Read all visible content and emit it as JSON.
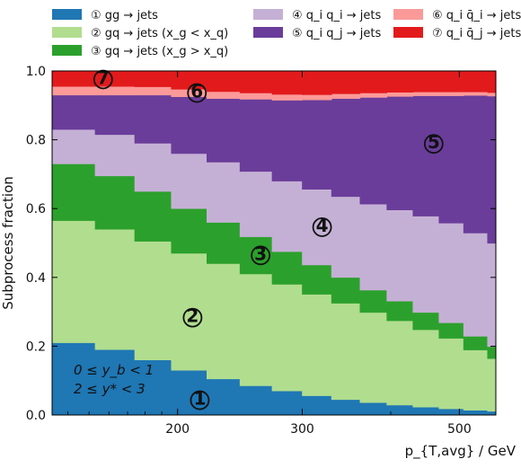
{
  "chart_data": {
    "type": "area",
    "subtype": "stacked-step",
    "title": "",
    "xlabel": "p_{T,avg} / GeV",
    "ylabel": "Subprocess fraction",
    "xscale": "log",
    "xlim": [
      133,
      563
    ],
    "ylim": [
      0.0,
      1.0
    ],
    "x_ticks": [
      200,
      300,
      500
    ],
    "x_tick_labels": [
      "200",
      "300",
      "500"
    ],
    "y_ticks": [
      0.0,
      0.2,
      0.4,
      0.6,
      0.8,
      1.0
    ],
    "y_tick_labels": [
      "0.0",
      "0.2",
      "0.4",
      "0.6",
      "0.8",
      "1.0"
    ],
    "grid": false,
    "legend_position": "top",
    "bin_edges": [
      133,
      153,
      174,
      196,
      220,
      245,
      272,
      300,
      330,
      362,
      395,
      430,
      468,
      507,
      548,
      563
    ],
    "series": [
      {
        "name": "gg → jets",
        "marker": "①",
        "color": "#1f77b4",
        "values": [
          0.21,
          0.19,
          0.16,
          0.13,
          0.105,
          0.085,
          0.07,
          0.056,
          0.045,
          0.036,
          0.029,
          0.023,
          0.018,
          0.014,
          0.011
        ]
      },
      {
        "name": "gq → jets (x_g < x_q)",
        "marker": "②",
        "color": "#b1dd8f",
        "values": [
          0.355,
          0.35,
          0.345,
          0.34,
          0.335,
          0.325,
          0.31,
          0.295,
          0.28,
          0.262,
          0.245,
          0.225,
          0.205,
          0.175,
          0.153
        ]
      },
      {
        "name": "gq → jets (x_g > x_q)",
        "marker": "③",
        "color": "#2ca02c",
        "values": [
          0.165,
          0.155,
          0.145,
          0.13,
          0.12,
          0.108,
          0.095,
          0.085,
          0.075,
          0.065,
          0.057,
          0.05,
          0.045,
          0.04,
          0.035
        ]
      },
      {
        "name": "q_i q_i → jets",
        "marker": "④",
        "color": "#c5b0d5",
        "values": [
          0.1,
          0.12,
          0.14,
          0.16,
          0.175,
          0.19,
          0.205,
          0.22,
          0.235,
          0.25,
          0.265,
          0.28,
          0.29,
          0.3,
          0.3
        ]
      },
      {
        "name": "q_i q_j → jets",
        "marker": "⑤",
        "color": "#6a3d9a",
        "values": [
          0.1,
          0.115,
          0.14,
          0.165,
          0.185,
          0.21,
          0.235,
          0.26,
          0.285,
          0.31,
          0.33,
          0.35,
          0.37,
          0.4,
          0.428
        ]
      },
      {
        "name": "q_i q̄_i → jets",
        "marker": "⑥",
        "color": "#fb9a99",
        "values": [
          0.025,
          0.025,
          0.024,
          0.022,
          0.02,
          0.018,
          0.017,
          0.015,
          0.014,
          0.013,
          0.012,
          0.011,
          0.011,
          0.01,
          0.01
        ]
      },
      {
        "name": "q_i q̄_j → jets",
        "marker": "⑦",
        "color": "#e31a1c",
        "values": [
          0.045,
          0.045,
          0.04,
          0.038,
          0.03,
          0.028,
          0.025,
          0.02,
          0.018,
          0.016,
          0.014,
          0.013,
          0.013,
          0.012,
          0.012
        ]
      }
    ],
    "annotations": [
      {
        "text": "0 ≤ y_b < 1"
      },
      {
        "text": "2 ≤ y* < 3"
      }
    ]
  }
}
